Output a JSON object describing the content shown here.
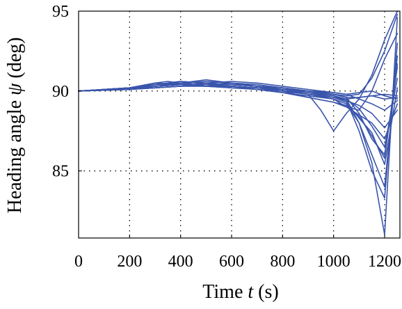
{
  "chart_data": {
    "type": "line",
    "title": "",
    "xlabel": {
      "prefix": "Time ",
      "var": "t",
      "suffix": " (s)"
    },
    "ylabel": {
      "prefix": "Heading angle ",
      "var": "ψ",
      "suffix": " (deg)"
    },
    "xlim": [
      0,
      1260
    ],
    "ylim": [
      80.8,
      95
    ],
    "x_ticks": [
      0,
      200,
      400,
      600,
      800,
      1000,
      1200
    ],
    "y_ticks": [
      85,
      90,
      95
    ],
    "x_grid": [
      200,
      400,
      600,
      800,
      1000,
      1200
    ],
    "y_grid": [
      85,
      90
    ],
    "grid": true,
    "line_color": "#3a55ac",
    "series": [
      {
        "x": [
          0,
          200,
          300,
          400,
          500,
          600,
          700,
          800,
          900,
          950,
          1000,
          1050,
          1100,
          1150,
          1200,
          1250
        ],
        "y": [
          90,
          90.15,
          90.4,
          90.5,
          90.4,
          90.3,
          90.2,
          90.1,
          90,
          89.9,
          89.8,
          89.7,
          89.8,
          90.8,
          92.5,
          94.8
        ]
      },
      {
        "x": [
          0,
          200,
          300,
          350,
          400,
          500,
          600,
          700,
          800,
          900,
          1000,
          1050,
          1100,
          1150,
          1200,
          1250
        ],
        "y": [
          90,
          90.2,
          90.5,
          90.6,
          90.5,
          90.4,
          90.3,
          90.2,
          90,
          89.6,
          89.3,
          89,
          88.8,
          90,
          92,
          93.6
        ]
      },
      {
        "x": [
          0,
          200,
          300,
          400,
          500,
          600,
          700,
          800,
          900,
          950,
          1000,
          1050,
          1100,
          1150,
          1200,
          1250
        ],
        "y": [
          90,
          90.1,
          90.3,
          90.4,
          90.3,
          90.2,
          90.1,
          90,
          89.8,
          88.8,
          87.5,
          88.6,
          89.5,
          91,
          93.2,
          95
        ]
      },
      {
        "x": [
          0,
          200,
          300,
          400,
          500,
          600,
          700,
          800,
          900,
          1000,
          1050,
          1100,
          1150,
          1200,
          1250
        ],
        "y": [
          90,
          90.1,
          90.2,
          90.3,
          90.4,
          90.3,
          90.2,
          90,
          89.8,
          89.6,
          89.5,
          88,
          85.5,
          81,
          94.6
        ]
      },
      {
        "x": [
          0,
          200,
          300,
          400,
          500,
          600,
          700,
          800,
          900,
          1000,
          1050,
          1100,
          1150,
          1200,
          1250
        ],
        "y": [
          90,
          90.2,
          90.4,
          90.5,
          90.6,
          90.5,
          90.3,
          90.1,
          89.9,
          89.7,
          89.4,
          87.5,
          85,
          83.3,
          93
        ]
      },
      {
        "x": [
          0,
          200,
          300,
          400,
          500,
          600,
          700,
          800,
          900,
          1000,
          1050,
          1100,
          1150,
          1200,
          1250
        ],
        "y": [
          90,
          90.15,
          90.3,
          90.4,
          90.3,
          90.2,
          90.1,
          89.9,
          89.7,
          89.5,
          89.2,
          88,
          86,
          84,
          92.2
        ]
      },
      {
        "x": [
          0,
          200,
          300,
          400,
          500,
          600,
          700,
          800,
          900,
          1000,
          1050,
          1100,
          1150,
          1200,
          1250
        ],
        "y": [
          90,
          90.1,
          90.2,
          90.3,
          90.4,
          90.5,
          90.4,
          90.2,
          90,
          89.8,
          89.6,
          88.6,
          87,
          86,
          91.5
        ]
      },
      {
        "x": [
          0,
          200,
          300,
          400,
          500,
          600,
          700,
          800,
          900,
          1000,
          1050,
          1100,
          1150,
          1200,
          1250
        ],
        "y": [
          90,
          90.2,
          90.5,
          90.4,
          90.3,
          90.3,
          90.2,
          90.1,
          89.9,
          89.6,
          89.3,
          88.3,
          87.4,
          85.4,
          90.2
        ]
      },
      {
        "x": [
          0,
          200,
          300,
          400,
          500,
          600,
          700,
          800,
          900,
          1000,
          1050,
          1100,
          1150,
          1200,
          1250
        ],
        "y": [
          90,
          90.1,
          90.3,
          90.5,
          90.4,
          90.4,
          90.3,
          90.1,
          89.8,
          89.5,
          89,
          88.5,
          88,
          87,
          89.2
        ]
      },
      {
        "x": [
          0,
          200,
          300,
          400,
          500,
          600,
          700,
          800,
          900,
          1000,
          1050,
          1100,
          1150,
          1200,
          1250
        ],
        "y": [
          90,
          90.15,
          90.4,
          90.6,
          90.5,
          90.6,
          90.5,
          90.3,
          90.1,
          89.9,
          89.8,
          89.5,
          89.2,
          88.8,
          89.4
        ]
      },
      {
        "x": [
          0,
          200,
          300,
          400,
          500,
          600,
          700,
          800,
          900,
          1000,
          1050,
          1100,
          1150,
          1200,
          1250
        ],
        "y": [
          90,
          90.1,
          90.2,
          90.3,
          90.3,
          90.3,
          90.2,
          90,
          89.8,
          89.6,
          89.4,
          89.1,
          88.6,
          87.7,
          88.8
        ]
      },
      {
        "x": [
          0,
          200,
          300,
          400,
          500,
          600,
          700,
          800,
          900,
          1000,
          1050,
          1100,
          1150,
          1200,
          1250
        ],
        "y": [
          90,
          90.2,
          90.3,
          90.4,
          90.5,
          90.4,
          90.3,
          90.2,
          90,
          89.7,
          89.5,
          89.6,
          89.7,
          89.5,
          89.6
        ]
      },
      {
        "x": [
          0,
          200,
          300,
          400,
          500,
          600,
          700,
          800,
          900,
          1000,
          1050,
          1100,
          1150,
          1200,
          1250
        ],
        "y": [
          90,
          90.1,
          90.3,
          90.4,
          90.3,
          90.3,
          90.2,
          90.1,
          90,
          89.9,
          89.8,
          89.9,
          90,
          89.7,
          89.5
        ]
      },
      {
        "x": [
          0,
          200,
          300,
          400,
          500,
          600,
          700,
          800,
          900,
          1000,
          1050,
          1100,
          1150,
          1200,
          1250
        ],
        "y": [
          90,
          90.15,
          90.3,
          90.5,
          90.7,
          90.5,
          90.3,
          90.1,
          89.9,
          89.7,
          89.5,
          88.9,
          87.8,
          86.5,
          90.8
        ]
      },
      {
        "x": [
          0,
          200,
          300,
          400,
          500,
          600,
          700,
          800,
          900,
          1000,
          1050,
          1100,
          1150,
          1200,
          1250
        ],
        "y": [
          90,
          90.1,
          90.2,
          90.3,
          90.4,
          90.3,
          90.1,
          89.9,
          89.6,
          89.3,
          89.1,
          88.4,
          87.2,
          85.8,
          91.7
        ]
      },
      {
        "x": [
          0,
          200,
          300,
          400,
          500,
          600,
          700,
          800,
          900,
          1000,
          1050,
          1100,
          1150,
          1200,
          1250
        ],
        "y": [
          90,
          90.2,
          90.4,
          90.6,
          90.5,
          90.4,
          90.3,
          90.2,
          90,
          89.8,
          89.6,
          89.6,
          89.7,
          89.8,
          89.7
        ]
      }
    ]
  }
}
